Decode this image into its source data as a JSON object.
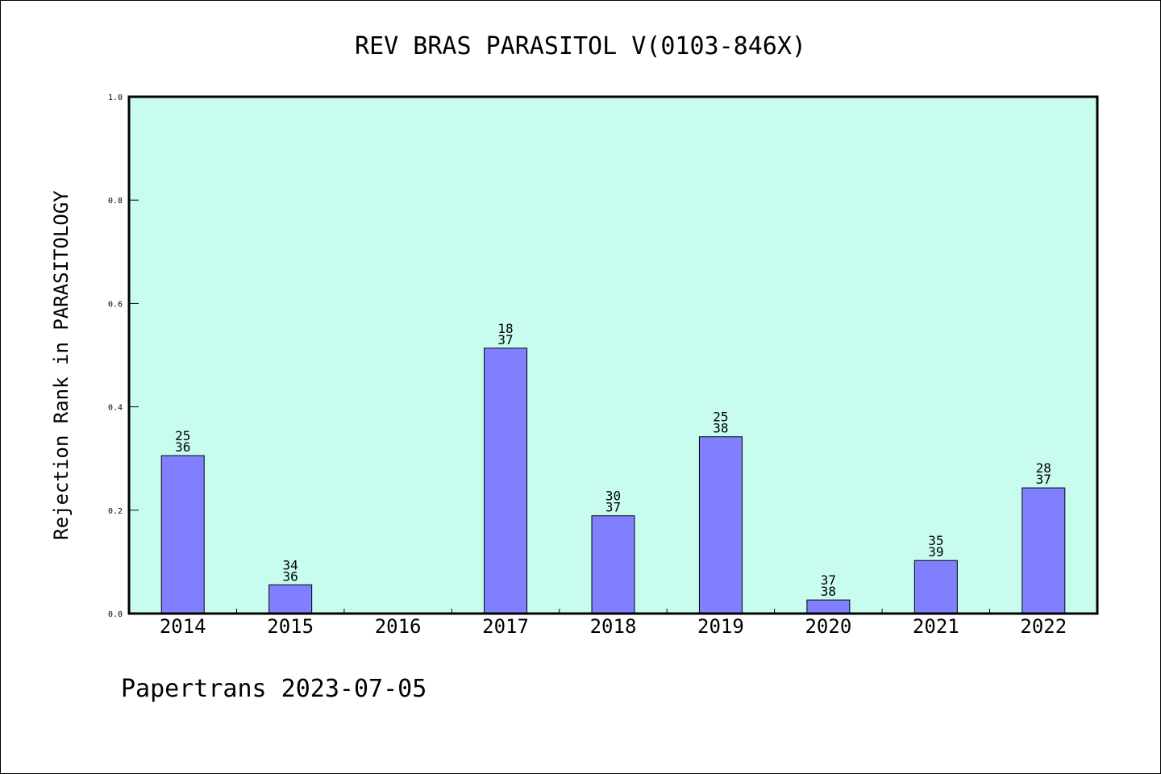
{
  "chart_data": {
    "type": "bar",
    "title": "REV BRAS PARASITOL V(0103-846X)",
    "xlabel": "",
    "ylabel": "Rejection Rank in PARASITOLOGY",
    "ylim": [
      0,
      1.0
    ],
    "yticks": [
      "0.0",
      "0.2",
      "0.4",
      "0.6",
      "0.8",
      "1.0"
    ],
    "categories": [
      "2014",
      "2015",
      "2016",
      "2017",
      "2018",
      "2019",
      "2020",
      "2021",
      "2022"
    ],
    "values": [
      0.3056,
      0.0556,
      null,
      0.5135,
      0.1892,
      0.3421,
      0.0263,
      0.1026,
      0.2432
    ],
    "labels": [
      {
        "top": "25",
        "bottom": "36"
      },
      {
        "top": "34",
        "bottom": "36"
      },
      null,
      {
        "top": "18",
        "bottom": "37"
      },
      {
        "top": "30",
        "bottom": "37"
      },
      {
        "top": "25",
        "bottom": "38"
      },
      {
        "top": "37",
        "bottom": "38"
      },
      {
        "top": "35",
        "bottom": "39"
      },
      {
        "top": "28",
        "bottom": "37"
      }
    ],
    "grid": false,
    "colors": {
      "plot_background": "#c8fcef",
      "bar": "#8080ff"
    }
  },
  "footer": "Papertrans 2023-07-05"
}
